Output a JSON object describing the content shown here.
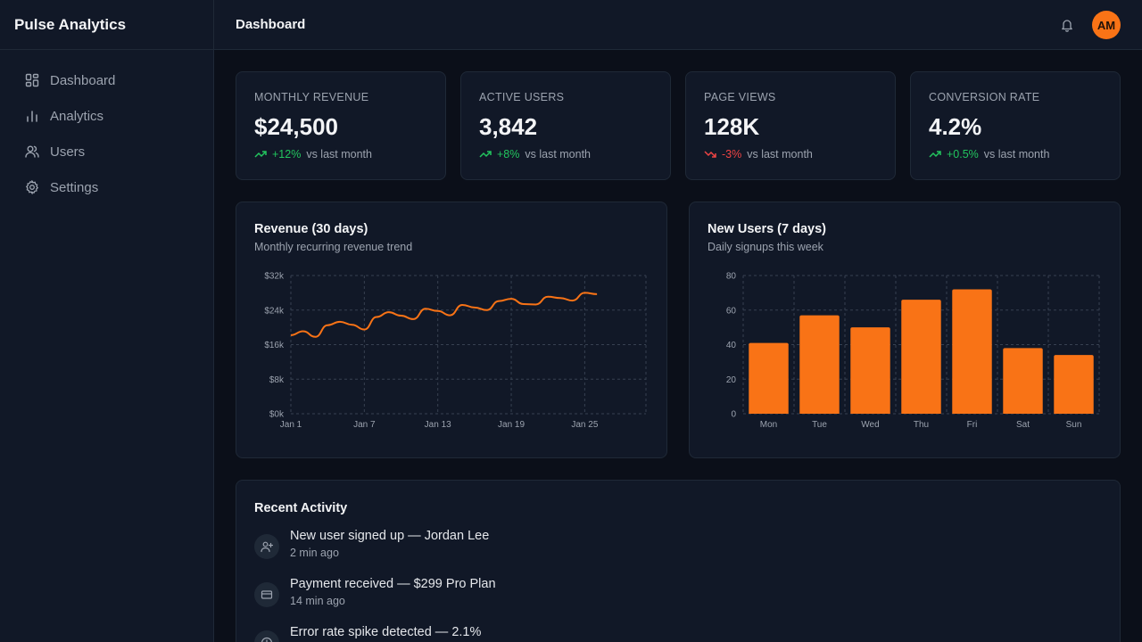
{
  "app": {
    "brand": "Pulse Analytics"
  },
  "sidebar": {
    "items": [
      {
        "label": "Dashboard",
        "icon": "grid-icon"
      },
      {
        "label": "Analytics",
        "icon": "bar-chart-icon"
      },
      {
        "label": "Users",
        "icon": "users-icon"
      },
      {
        "label": "Settings",
        "icon": "gear-icon"
      }
    ]
  },
  "header": {
    "title": "Dashboard",
    "avatar_initials": "AM"
  },
  "kpis": [
    {
      "label": "MONTHLY REVENUE",
      "value": "$24,500",
      "delta": "+12%",
      "direction": "up",
      "compare": "vs last month"
    },
    {
      "label": "ACTIVE USERS",
      "value": "3,842",
      "delta": "+8%",
      "direction": "up",
      "compare": "vs last month"
    },
    {
      "label": "PAGE VIEWS",
      "value": "128K",
      "delta": "-3%",
      "direction": "down",
      "compare": "vs last month"
    },
    {
      "label": "CONVERSION RATE",
      "value": "4.2%",
      "delta": "+0.5%",
      "direction": "up",
      "compare": "vs last month"
    }
  ],
  "colors": {
    "accent": "#f97316",
    "positive": "#22c55e",
    "negative": "#ef4444"
  },
  "chart_data": [
    {
      "type": "line",
      "title": "Revenue (30 days)",
      "subtitle": "Monthly recurring revenue trend",
      "x_labels": [
        "Jan 1",
        "Jan 7",
        "Jan 13",
        "Jan 19",
        "Jan 25"
      ],
      "y_ticks": [
        "$0k",
        "$8k",
        "$16k",
        "$24k",
        "$32k"
      ],
      "ylim": [
        0,
        32
      ],
      "xlim": [
        1,
        30
      ],
      "grid": true,
      "series": [
        {
          "x": [
            1,
            2,
            3,
            4,
            5,
            6,
            7,
            8,
            9,
            10,
            11,
            12,
            13,
            14,
            15,
            16,
            17,
            18,
            19,
            20,
            21,
            22,
            23,
            24,
            25,
            26
          ],
          "values": [
            18.2,
            19.1,
            17.8,
            20.5,
            21.3,
            20.6,
            19.5,
            22.4,
            23.5,
            22.7,
            21.9,
            24.3,
            23.8,
            22.8,
            25.2,
            24.6,
            24.0,
            26.1,
            26.6,
            25.4,
            25.3,
            27.1,
            26.8,
            26.2,
            28.0,
            27.7
          ]
        }
      ]
    },
    {
      "type": "bar",
      "title": "New Users (7 days)",
      "subtitle": "Daily signups this week",
      "categories": [
        "Mon",
        "Tue",
        "Wed",
        "Thu",
        "Fri",
        "Sat",
        "Sun"
      ],
      "values": [
        41,
        57,
        50,
        66,
        72,
        38,
        34
      ],
      "y_ticks": [
        "0",
        "20",
        "40",
        "60",
        "80"
      ],
      "ylim": [
        0,
        80
      ],
      "grid": true
    }
  ],
  "activity": {
    "title": "Recent Activity",
    "items": [
      {
        "text": "New user signed up — Jordan Lee",
        "time": "2 min ago",
        "icon": "user-plus-icon"
      },
      {
        "text": "Payment received — $299 Pro Plan",
        "time": "14 min ago",
        "icon": "credit-card-icon"
      },
      {
        "text": "Error rate spike detected — 2.1%",
        "time": "",
        "icon": "alert-icon"
      }
    ]
  }
}
